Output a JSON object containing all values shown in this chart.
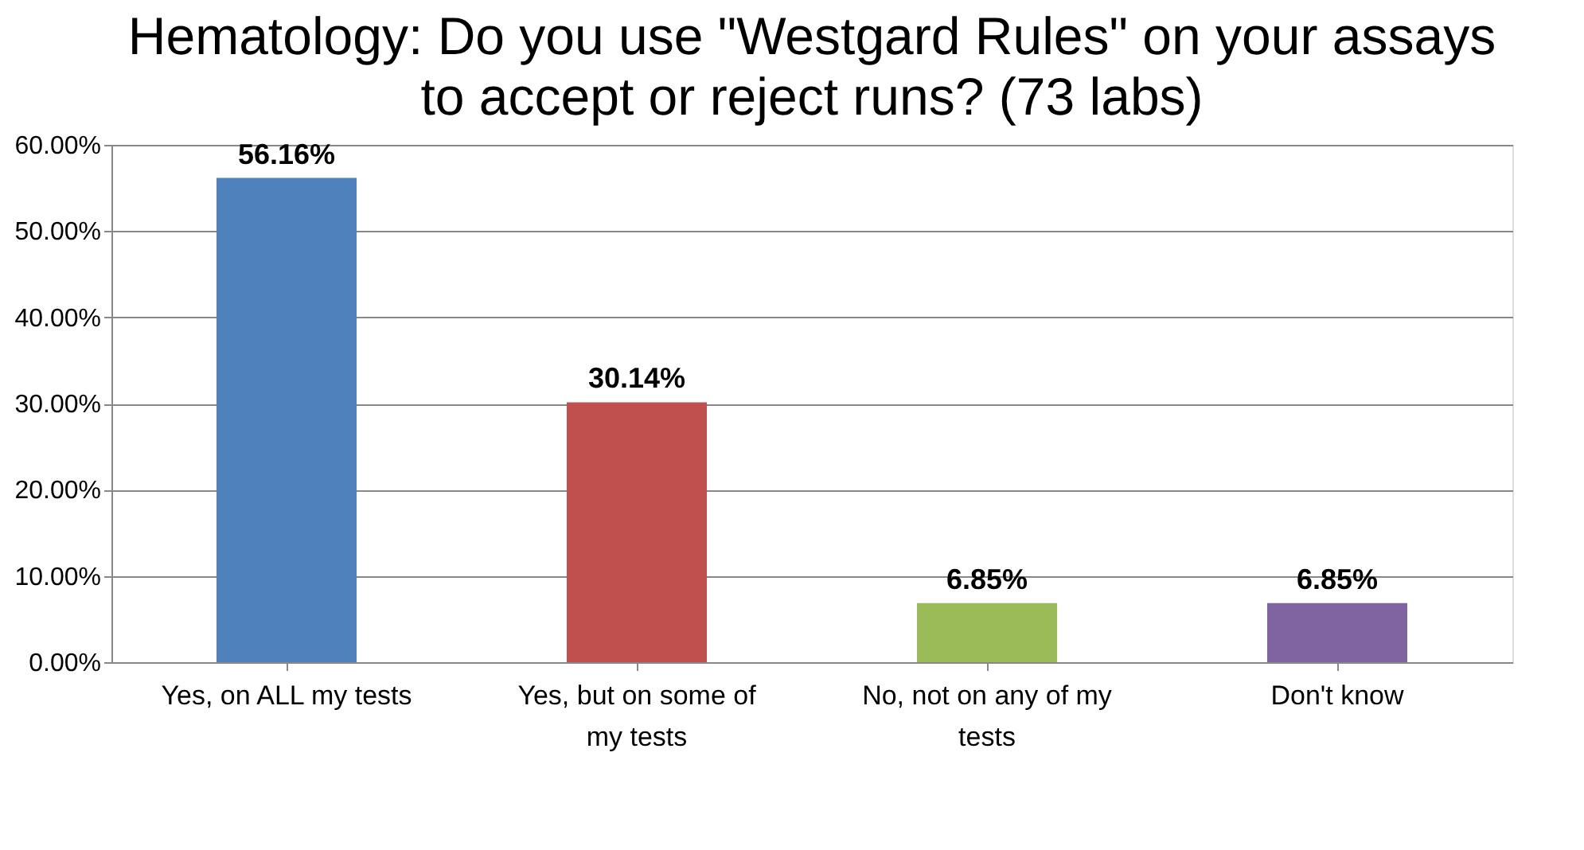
{
  "chart_data": {
    "type": "bar",
    "title": "Hematology: Do you use \"Westgard Rules\" on your assays to accept or reject runs? (73 labs)",
    "categories": [
      "Yes, on ALL my tests",
      "Yes, but on  some of my tests",
      "No, not on any of my tests",
      "Don't know"
    ],
    "values": [
      56.16,
      30.14,
      6.85,
      6.85
    ],
    "colors": [
      "#4f81bd",
      "#c0504d",
      "#9bbb59",
      "#8064a2"
    ],
    "value_labels": [
      "56.16%",
      "30.14%",
      "6.85%",
      "6.85%"
    ],
    "ylim": [
      0,
      60
    ],
    "yticks": [
      {
        "value": 0,
        "label": "0.00%"
      },
      {
        "value": 10,
        "label": "10.00%"
      },
      {
        "value": 20,
        "label": "20.00%"
      },
      {
        "value": 30,
        "label": "30.00%"
      },
      {
        "value": 40,
        "label": "40.00%"
      },
      {
        "value": 50,
        "label": "50.00%"
      },
      {
        "value": 60,
        "label": "60.00%"
      }
    ],
    "grid": "y"
  }
}
